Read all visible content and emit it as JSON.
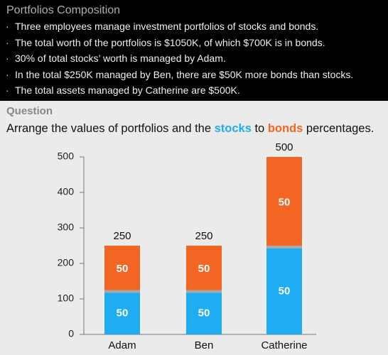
{
  "header": {
    "title": "Portfolios Composition",
    "bullets": [
      "Three employees manage investment portfolios of stocks and bonds.",
      "The total worth of the portfolios is $1050K, of which $700K is in bonds.",
      "30% of total stocks’ worth is managed by Adam.",
      "In the total $250K managed by Ben, there are $50K more bonds than stocks.",
      "The total assets managed by Catherine are $500K."
    ]
  },
  "question": {
    "label": "Question",
    "parts": [
      {
        "text": "Arrange the values of portfolios and the "
      },
      {
        "text": "stocks",
        "color": "#1fadf2"
      },
      {
        "text": " to "
      },
      {
        "text": "bonds",
        "color": "#f26522"
      },
      {
        "text": " percentages."
      }
    ]
  },
  "chart_data": {
    "type": "stacked_bar",
    "categories": [
      "Adam",
      "Ben",
      "Catherine"
    ],
    "series": [
      {
        "color": "#1fadf2",
        "values": [
          125,
          125,
          250
        ],
        "labels": [
          "50",
          "50",
          "50"
        ]
      },
      {
        "color": "#f26522",
        "values": [
          125,
          125,
          250
        ],
        "labels": [
          "50",
          "50",
          "50"
        ]
      }
    ],
    "totals": [
      250,
      250,
      500
    ],
    "ylim": [
      0,
      500
    ],
    "yticks": [
      0,
      100,
      200,
      300,
      400,
      500
    ]
  }
}
